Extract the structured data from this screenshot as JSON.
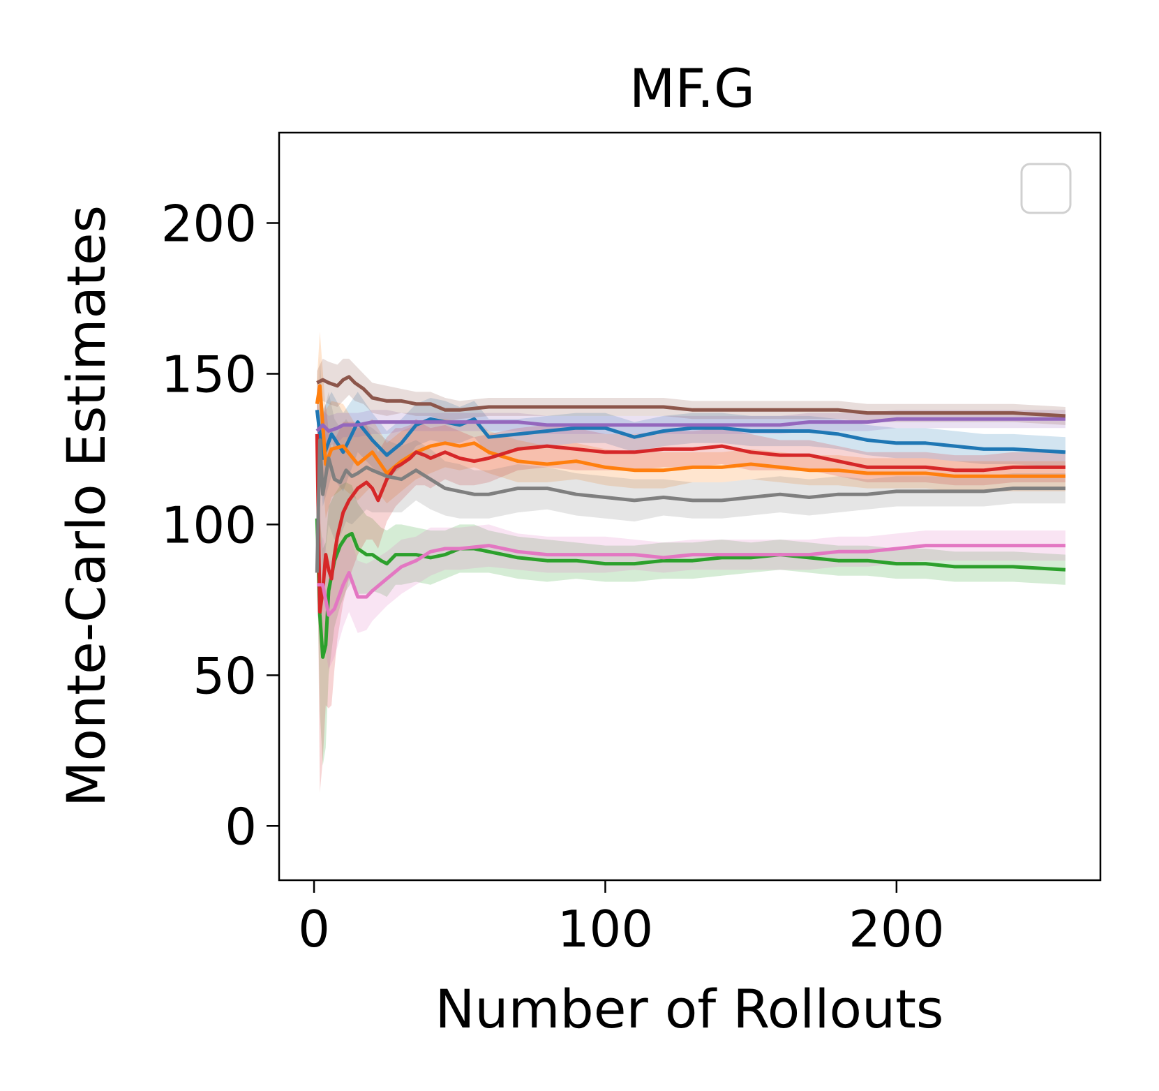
{
  "chart_data": {
    "type": "line",
    "title": "MF.G",
    "xlabel": "Number of Rollouts",
    "ylabel": "Monte-Carlo Estimates",
    "xlim": [
      -12,
      270
    ],
    "ylim": [
      -18,
      230
    ],
    "xticks": [
      0,
      100,
      200
    ],
    "yticks": [
      0,
      50,
      100,
      150,
      200
    ],
    "grid": false,
    "legend": "empty box, top-right",
    "series": [
      {
        "color": "#1f77b4",
        "x": [
          1,
          3,
          6,
          10,
          15,
          20,
          25,
          30,
          35,
          40,
          45,
          50,
          55,
          60,
          70,
          80,
          90,
          100,
          110,
          120,
          130,
          140,
          150,
          160,
          170,
          180,
          190,
          200,
          210,
          220,
          230,
          240,
          258
        ],
        "y": [
          138,
          122,
          130,
          124,
          134,
          128,
          123,
          127,
          133,
          135,
          134,
          133,
          135,
          129,
          130,
          131,
          132,
          132,
          129,
          131,
          132,
          132,
          131,
          131,
          131,
          130,
          128,
          127,
          127,
          126,
          125,
          125,
          124
        ],
        "band": [
          6,
          16,
          14,
          13,
          10,
          9,
          8,
          8,
          7,
          7,
          7,
          6,
          6,
          6,
          5,
          5,
          5,
          5,
          5,
          5,
          5,
          5,
          5,
          5,
          5,
          5,
          5,
          5,
          5,
          5,
          5,
          5,
          5
        ]
      },
      {
        "color": "#ff7f0e",
        "x": [
          1,
          2,
          4,
          6,
          10,
          15,
          20,
          25,
          30,
          35,
          40,
          45,
          50,
          55,
          60,
          70,
          80,
          90,
          100,
          110,
          120,
          130,
          140,
          150,
          160,
          170,
          180,
          190,
          200,
          210,
          220,
          230,
          240,
          258
        ],
        "y": [
          140,
          146,
          120,
          125,
          126,
          120,
          124,
          117,
          121,
          124,
          126,
          127,
          126,
          127,
          124,
          121,
          120,
          121,
          119,
          118,
          118,
          119,
          119,
          120,
          119,
          118,
          118,
          117,
          117,
          117,
          116,
          116,
          116,
          116
        ],
        "band": [
          8,
          18,
          18,
          16,
          14,
          12,
          11,
          10,
          10,
          9,
          9,
          8,
          8,
          8,
          7,
          7,
          6,
          6,
          6,
          6,
          6,
          5,
          5,
          5,
          5,
          5,
          5,
          5,
          5,
          5,
          5,
          5,
          5,
          5
        ]
      },
      {
        "color": "#2ca02c",
        "x": [
          1,
          2,
          3,
          4,
          5,
          7,
          9,
          11,
          13,
          15,
          18,
          20,
          23,
          25,
          28,
          30,
          35,
          40,
          45,
          50,
          55,
          60,
          65,
          70,
          80,
          90,
          100,
          110,
          120,
          130,
          140,
          150,
          160,
          170,
          180,
          190,
          200,
          210,
          220,
          230,
          240,
          258
        ],
        "y": [
          102,
          70,
          56,
          60,
          78,
          88,
          93,
          96,
          97,
          92,
          90,
          90,
          88,
          87,
          90,
          90,
          90,
          89,
          90,
          92,
          92,
          91,
          90,
          89,
          88,
          88,
          87,
          87,
          88,
          88,
          89,
          89,
          90,
          89,
          88,
          88,
          87,
          87,
          86,
          86,
          86,
          85
        ],
        "band": [
          14,
          32,
          36,
          34,
          28,
          22,
          20,
          18,
          16,
          15,
          13,
          12,
          11,
          11,
          10,
          10,
          9,
          9,
          8,
          8,
          8,
          7,
          7,
          7,
          7,
          6,
          6,
          6,
          6,
          6,
          6,
          5,
          5,
          5,
          5,
          5,
          5,
          5,
          5,
          5,
          5,
          5
        ]
      },
      {
        "color": "#d62728",
        "x": [
          1,
          2,
          3,
          4,
          5,
          6,
          7,
          8,
          10,
          12,
          15,
          18,
          20,
          22,
          25,
          28,
          30,
          33,
          35,
          38,
          40,
          45,
          50,
          55,
          60,
          70,
          80,
          90,
          100,
          110,
          120,
          130,
          140,
          150,
          160,
          170,
          180,
          190,
          200,
          210,
          220,
          230,
          240,
          258
        ],
        "y": [
          130,
          71,
          78,
          90,
          85,
          82,
          90,
          96,
          104,
          108,
          112,
          114,
          112,
          108,
          115,
          119,
          120,
          122,
          124,
          123,
          122,
          124,
          122,
          121,
          122,
          125,
          126,
          125,
          124,
          124,
          125,
          125,
          126,
          124,
          123,
          123,
          121,
          119,
          119,
          119,
          118,
          118,
          119,
          119
        ],
        "band": [
          18,
          60,
          56,
          50,
          46,
          42,
          38,
          34,
          30,
          26,
          22,
          19,
          17,
          16,
          14,
          13,
          12,
          11,
          11,
          10,
          10,
          9,
          9,
          8,
          8,
          7,
          7,
          7,
          6,
          6,
          6,
          6,
          6,
          6,
          5,
          5,
          5,
          5,
          5,
          5,
          5,
          5,
          5,
          5
        ]
      },
      {
        "color": "#9467bd",
        "x": [
          1,
          3,
          5,
          8,
          10,
          15,
          20,
          25,
          30,
          40,
          50,
          60,
          70,
          80,
          90,
          100,
          110,
          120,
          130,
          140,
          150,
          160,
          170,
          180,
          190,
          200,
          210,
          220,
          230,
          240,
          258
        ],
        "y": [
          131,
          133,
          131,
          132,
          133,
          133,
          134,
          134,
          134,
          134,
          134,
          134,
          134,
          133,
          133,
          133,
          133,
          133,
          133,
          133,
          133,
          133,
          134,
          134,
          134,
          135,
          135,
          135,
          135,
          135,
          135
        ],
        "band": [
          4,
          5,
          5,
          5,
          4,
          4,
          4,
          4,
          3,
          3,
          3,
          3,
          3,
          3,
          3,
          3,
          3,
          3,
          3,
          3,
          3,
          3,
          3,
          3,
          3,
          3,
          3,
          3,
          3,
          3,
          3
        ]
      },
      {
        "color": "#8c564b",
        "x": [
          1,
          3,
          5,
          8,
          10,
          12,
          14,
          17,
          20,
          25,
          30,
          35,
          40,
          45,
          50,
          60,
          70,
          80,
          90,
          100,
          110,
          120,
          130,
          140,
          150,
          160,
          170,
          180,
          190,
          200,
          210,
          220,
          230,
          240,
          258
        ],
        "y": [
          147,
          148,
          147,
          146,
          148,
          149,
          147,
          145,
          142,
          141,
          141,
          140,
          140,
          138,
          138,
          139,
          139,
          139,
          139,
          139,
          139,
          139,
          138,
          138,
          138,
          138,
          138,
          138,
          137,
          137,
          137,
          137,
          137,
          137,
          136
        ],
        "band": [
          4,
          7,
          7,
          7,
          7,
          6,
          6,
          5,
          5,
          5,
          4,
          4,
          4,
          4,
          3,
          3,
          3,
          3,
          3,
          3,
          3,
          3,
          3,
          3,
          3,
          3,
          3,
          3,
          3,
          3,
          3,
          3,
          3,
          3,
          3
        ]
      },
      {
        "color": "#e377c2",
        "x": [
          1,
          3,
          5,
          7,
          10,
          12,
          15,
          18,
          20,
          25,
          30,
          35,
          40,
          45,
          50,
          60,
          70,
          80,
          90,
          100,
          110,
          120,
          130,
          140,
          150,
          160,
          170,
          180,
          190,
          200,
          210,
          220,
          230,
          240,
          258
        ],
        "y": [
          80,
          80,
          70,
          72,
          80,
          84,
          76,
          76,
          78,
          82,
          86,
          88,
          91,
          92,
          92,
          93,
          91,
          90,
          90,
          90,
          90,
          89,
          90,
          90,
          90,
          90,
          90,
          91,
          91,
          92,
          93,
          93,
          93,
          93,
          93
        ],
        "band": [
          10,
          16,
          18,
          16,
          14,
          13,
          12,
          11,
          10,
          9,
          9,
          8,
          8,
          7,
          7,
          7,
          6,
          6,
          6,
          6,
          5,
          5,
          5,
          5,
          5,
          5,
          5,
          5,
          5,
          5,
          5,
          5,
          5,
          5,
          5
        ]
      },
      {
        "color": "#7f7f7f",
        "x": [
          1,
          2,
          3,
          5,
          7,
          9,
          11,
          13,
          15,
          18,
          20,
          25,
          30,
          35,
          40,
          45,
          50,
          55,
          60,
          70,
          80,
          90,
          100,
          110,
          120,
          130,
          140,
          150,
          160,
          170,
          180,
          190,
          200,
          210,
          220,
          230,
          240,
          258
        ],
        "y": [
          84,
          128,
          110,
          122,
          115,
          114,
          118,
          116,
          117,
          119,
          118,
          116,
          115,
          118,
          115,
          112,
          111,
          110,
          110,
          112,
          112,
          110,
          109,
          108,
          109,
          108,
          108,
          109,
          110,
          109,
          110,
          110,
          111,
          111,
          111,
          111,
          112,
          112
        ],
        "band": [
          12,
          28,
          26,
          22,
          20,
          18,
          17,
          16,
          15,
          14,
          14,
          12,
          11,
          10,
          10,
          9,
          9,
          8,
          8,
          8,
          7,
          7,
          7,
          7,
          6,
          6,
          6,
          6,
          6,
          6,
          6,
          5,
          5,
          5,
          5,
          5,
          5,
          5
        ]
      }
    ]
  }
}
